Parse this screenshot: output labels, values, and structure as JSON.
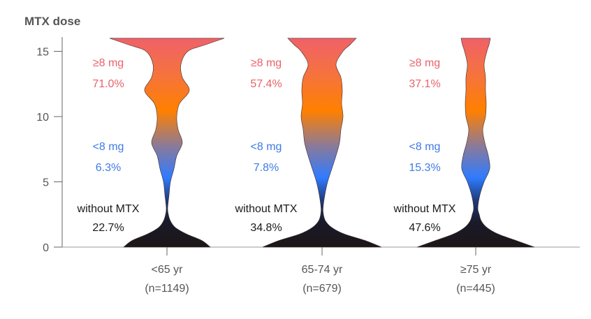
{
  "chart_data": {
    "type": "violin",
    "title": "MTX dose",
    "ylabel": "MTX dose",
    "ylim": [
      0,
      16
    ],
    "yticks": [
      0,
      5,
      10,
      15
    ],
    "grid": false,
    "categories": [
      {
        "label": "<65 yr",
        "n_label": "(n=1149)"
      },
      {
        "label": "65-74 yr",
        "n_label": "(n=679)"
      },
      {
        "label": "≥75 yr",
        "n_label": "(n=445)"
      }
    ],
    "density_doses": [
      0,
      0.5,
      1,
      1.5,
      2,
      2.5,
      3,
      4,
      5,
      6,
      7,
      8,
      9,
      10,
      11,
      12,
      13,
      14,
      15,
      15.5,
      16
    ],
    "series": [
      {
        "name": "<65 yr",
        "density": [
          62,
          50,
          28,
          12,
          5,
          2,
          1,
          3,
          5,
          10,
          14,
          22,
          16,
          14,
          18,
          32,
          22,
          20,
          30,
          55,
          82
        ],
        "groups": [
          {
            "label": "≥8 mg",
            "value": "71.0%"
          },
          {
            "label": "<8 mg",
            "value": "6.3%"
          },
          {
            "label": "without MTX",
            "value": "22.7%"
          }
        ]
      },
      {
        "name": "65-74 yr",
        "density": [
          85,
          62,
          32,
          14,
          5,
          2,
          1.5,
          4,
          8,
          14,
          20,
          25,
          27,
          30,
          28,
          29,
          27,
          20,
          30,
          40,
          49
        ],
        "groups": [
          {
            "label": "≥8 mg",
            "value": "57.4%"
          },
          {
            "label": "<8 mg",
            "value": "7.8%"
          },
          {
            "label": "without MTX",
            "value": "34.8%"
          }
        ]
      },
      {
        "name": "≥75 yr",
        "density": [
          84,
          58,
          32,
          16,
          8,
          5,
          3,
          6,
          12,
          20,
          18,
          13,
          10,
          14,
          15,
          14,
          14,
          12,
          16,
          19,
          21
        ],
        "groups": [
          {
            "label": "≥8 mg",
            "value": "37.1%"
          },
          {
            "label": "<8 mg",
            "value": "15.3%"
          },
          {
            "label": "without MTX",
            "value": "47.6%"
          }
        ]
      }
    ],
    "group_colors": {
      "high": "#e8636a",
      "low": "#3f7be6",
      "none": "#1a1a1a"
    },
    "gradient": [
      "#1c1617",
      "#1a1a2a",
      "#1e3a7a",
      "#2f7bff",
      "#8a7a9a",
      "#ff8000",
      "#f5733d",
      "#f0606a"
    ]
  }
}
